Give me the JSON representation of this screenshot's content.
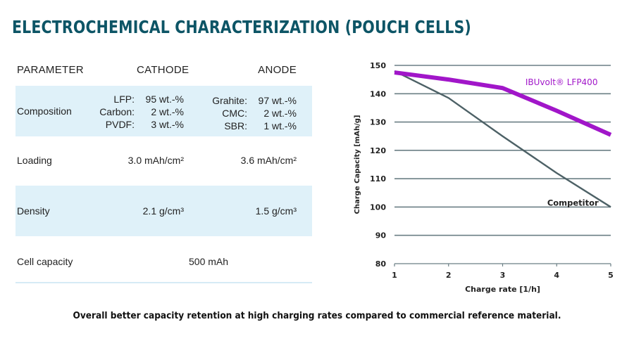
{
  "title": "ELECTROCHEMICAL CHARACTERIZATION (POUCH CELLS)",
  "table": {
    "headers": {
      "parameter": "PARAMETER",
      "cathode": "CATHODE",
      "anode": "ANODE"
    },
    "composition": {
      "label": "Composition",
      "cathode": [
        {
          "k": "LFP:",
          "v": "95 wt.-%"
        },
        {
          "k": "Carbon:",
          "v": "2 wt.-%"
        },
        {
          "k": "PVDF:",
          "v": "3 wt.-%"
        }
      ],
      "anode": [
        {
          "k": "Grahite:",
          "v": "97 wt.-%"
        },
        {
          "k": "CMC:",
          "v": "2 wt.-%"
        },
        {
          "k": "SBR:",
          "v": "1 wt.-%"
        }
      ]
    },
    "loading": {
      "label": "Loading",
      "cathode": "3.0 mAh/cm²",
      "anode": "3.6 mAh/cm²"
    },
    "density": {
      "label": "Density",
      "cathode": "2.1 g/cm³",
      "anode": "1.5 g/cm³"
    },
    "cell_capacity": {
      "label": "Cell capacity",
      "value": "500 mAh"
    }
  },
  "colors": {
    "title": "#0d5566",
    "row_shade": "#dff1f9",
    "ibuvolt": "#a116c9",
    "competitor": "#4d6166",
    "grid": "#6b7f85"
  },
  "chart_data": {
    "type": "line",
    "title": "",
    "xlabel": "Charge rate [1/h]",
    "ylabel": "Charge Capacity [mAh/g]",
    "x": [
      1,
      2,
      3,
      4,
      5
    ],
    "xlim": [
      1,
      5
    ],
    "ylim": [
      80,
      150
    ],
    "xticks": [
      1,
      2,
      3,
      4,
      5
    ],
    "yticks": [
      80,
      90,
      100,
      110,
      120,
      130,
      140,
      150
    ],
    "grid": "horizontal",
    "series": [
      {
        "name": "IBUvolt® LFP400",
        "values": [
          147.5,
          145,
          142,
          134,
          125.5
        ]
      },
      {
        "name": "Competitor",
        "values": [
          148,
          138.5,
          125,
          112,
          100
        ]
      }
    ],
    "annotations": [
      {
        "text": "IBUvolt® LFP400",
        "series": "IBUvolt® LFP400",
        "near_x": 3.5,
        "near_y": 144
      },
      {
        "text": "Competitor",
        "series": "Competitor",
        "near_x": 4.3,
        "near_y": 101.5
      }
    ]
  },
  "footer": "Overall better capacity retention at high charging rates compared to commercial reference material."
}
